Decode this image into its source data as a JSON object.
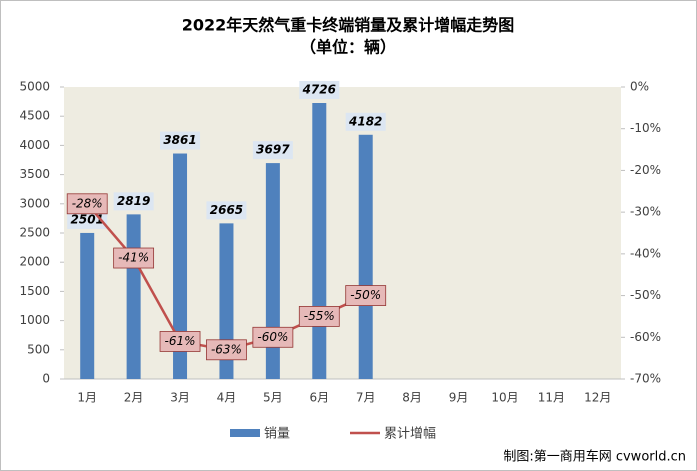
{
  "chart_data": {
    "type": "bar-line",
    "title": "2022年天然气重卡终端销量及累计增幅走势图",
    "subtitle": "（单位：辆）",
    "categories": [
      "1月",
      "2月",
      "3月",
      "4月",
      "5月",
      "6月",
      "7月",
      "8月",
      "9月",
      "10月",
      "11月",
      "12月"
    ],
    "series": [
      {
        "name": "销量",
        "type": "bar",
        "color": "#4f81bd",
        "values": [
          2501,
          2819,
          3861,
          2665,
          3697,
          4726,
          4182,
          null,
          null,
          null,
          null,
          null
        ]
      },
      {
        "name": "累计增幅",
        "type": "line",
        "axis": "y2",
        "color": "#c0504d",
        "values": [
          -28,
          -41,
          -61,
          -63,
          -60,
          -55,
          -50,
          null,
          null,
          null,
          null,
          null
        ],
        "value_labels": [
          "-28%",
          "-41%",
          "-61%",
          "-63%",
          "-60%",
          "-55%",
          "-50%",
          null,
          null,
          null,
          null,
          null
        ]
      }
    ],
    "ylim": [
      0,
      5000
    ],
    "yticks": [
      0,
      500,
      1000,
      1500,
      2000,
      2500,
      3000,
      3500,
      4000,
      4500,
      5000
    ],
    "y2lim": [
      -70,
      0
    ],
    "y2ticks": [
      {
        "value": 0,
        "label": "0%"
      },
      {
        "value": -10,
        "label": "-10%"
      },
      {
        "value": -20,
        "label": "-20%"
      },
      {
        "value": -30,
        "label": "-30%"
      },
      {
        "value": -40,
        "label": "-40%"
      },
      {
        "value": -50,
        "label": "-50%"
      },
      {
        "value": -60,
        "label": "-60%"
      },
      {
        "value": -70,
        "label": "-70%"
      }
    ],
    "source": "制图:第一商用车网 cvworld.cn"
  }
}
